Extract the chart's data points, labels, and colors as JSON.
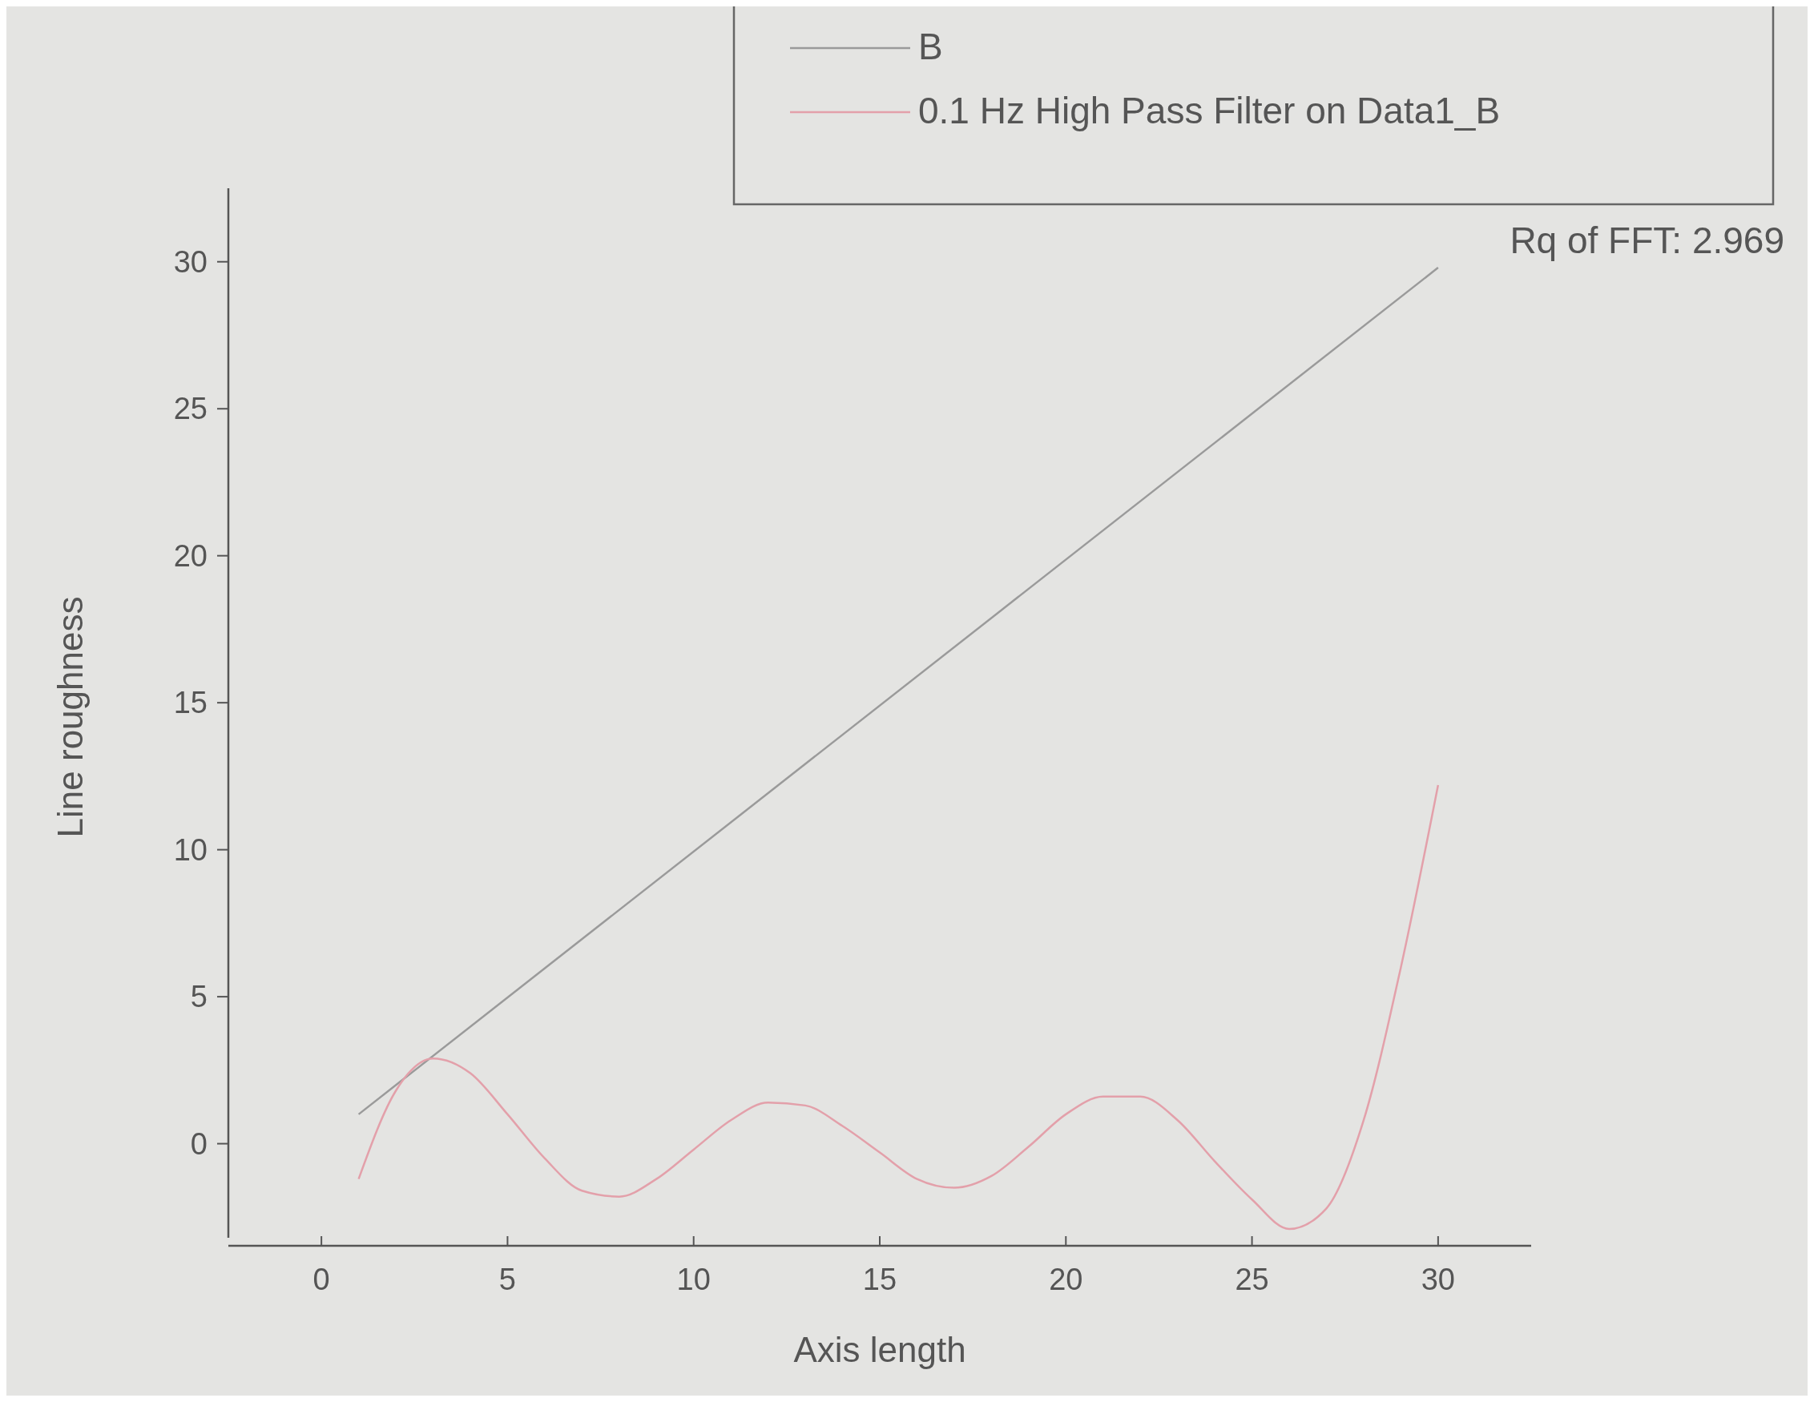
{
  "chart_data": {
    "type": "line",
    "xlabel": "Axis length",
    "ylabel": "Line roughness",
    "xlim": [
      -2.5,
      32.5
    ],
    "xticks": [
      0,
      5,
      10,
      15,
      20,
      25,
      30
    ],
    "ylim": [
      -3.2,
      32.5
    ],
    "yticks": [
      0,
      5,
      10,
      15,
      20,
      25,
      30
    ],
    "legend": "top right",
    "grid": false,
    "annotations": [
      "Rq of FFT: 2.969"
    ],
    "series": [
      {
        "name": "B",
        "color": "#9a9a9a",
        "x": [
          1,
          30
        ],
        "values": [
          1,
          29.8
        ]
      },
      {
        "name": "0.1 Hz High Pass Filter on Data1_B",
        "color": "#e3a0aa",
        "x": [
          1,
          2,
          3,
          4,
          5,
          6,
          7,
          8,
          9,
          10,
          11,
          12,
          13,
          14,
          15,
          16,
          17,
          18,
          19,
          20,
          21,
          22,
          23,
          24,
          25,
          26,
          27,
          28,
          29,
          30
        ],
        "values": [
          -1.2,
          1.8,
          2.9,
          2.4,
          1,
          -0.5,
          -1.6,
          -1.8,
          -1.2,
          -0.2,
          0.8,
          1.4,
          1.3,
          0.6,
          -0.3,
          -1.2,
          -1.5,
          -1.1,
          -0.1,
          1,
          1.6,
          1.6,
          0.8,
          -0.6,
          -1.9,
          -2.9,
          -2.2,
          0.8,
          6,
          12.2
        ]
      }
    ]
  }
}
